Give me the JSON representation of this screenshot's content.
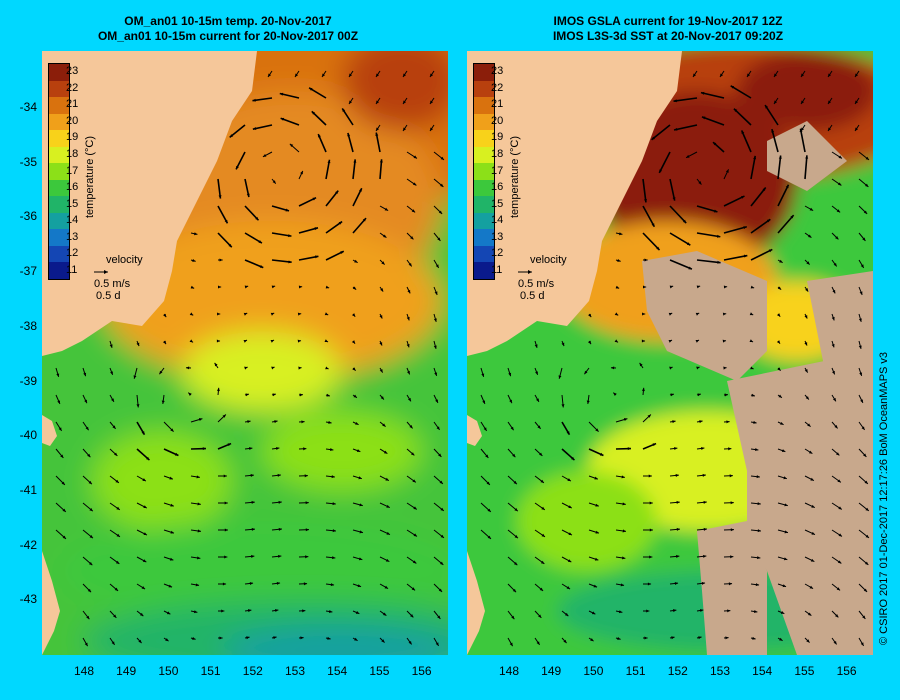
{
  "left_panel": {
    "title_line1": "OM_an01 10-15m temp. 20-Nov-2017",
    "title_line2": "OM_an01 10-15m current for 20-Nov-2017 00Z"
  },
  "right_panel": {
    "title_line1": "IMOS GSLA current for 19-Nov-2017 12Z",
    "title_line2": "IMOS L3S-3d SST at 20-Nov-2017 09:20Z"
  },
  "colorbar": {
    "title": "temperature (°C)",
    "ticks": [
      "23",
      "22",
      "21",
      "20",
      "19",
      "18",
      "17",
      "16",
      "15",
      "14",
      "13",
      "12",
      "11"
    ],
    "colors": [
      "#8b1e0a",
      "#b8400e",
      "#d9720e",
      "#f0a01a",
      "#f8d21a",
      "#d8f020",
      "#8ce018",
      "#3cc83c",
      "#20b468",
      "#14a0a0",
      "#1478c8",
      "#1446b4",
      "#0a1a8c"
    ]
  },
  "velocity_key": {
    "label": "velocity",
    "speed": "0.5 m/s",
    "duration": "0.5 d"
  },
  "x_axis_ticks": [
    "148",
    "149",
    "150",
    "151",
    "152",
    "153",
    "154",
    "155",
    "156"
  ],
  "y_axis_ticks": [
    "-34",
    "-35",
    "-36",
    "-37",
    "-38",
    "-39",
    "-40",
    "-41",
    "-42",
    "-43"
  ],
  "credit": "© CSIRO 2017   01-Dec-2017 12:17:26 BoM OceanMAPS v3",
  "colors": {
    "background": "#00d8ff",
    "land": "#f5c79a",
    "no_data": "#c8a88c"
  }
}
